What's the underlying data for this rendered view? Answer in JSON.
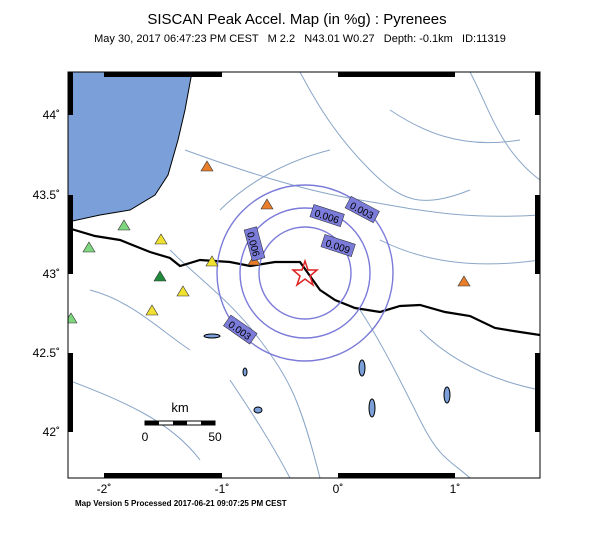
{
  "header": {
    "title": "SISCAN Peak Accel. Map (in %g) : Pyrenees",
    "subtitle": "May 30, 2017 06:47:23 PM CEST   M 2.2   N43.01 W0.27   Depth: -0.1km   ID:11319"
  },
  "axes": {
    "lat_labels": [
      "44˚",
      "43.5˚",
      "43˚",
      "42.5˚",
      "42˚"
    ],
    "lon_labels": [
      "-2˚",
      "-1˚",
      "0˚",
      "1˚"
    ]
  },
  "contours": {
    "labels": [
      "0.003",
      "0.006",
      "0.009",
      "0.006",
      "0.003"
    ]
  },
  "scale_bar": {
    "unit": "km",
    "start": "0",
    "end": "50"
  },
  "footer": "Map Version 5 Processed 2017-06-21 09:07:25 PM CEST"
}
